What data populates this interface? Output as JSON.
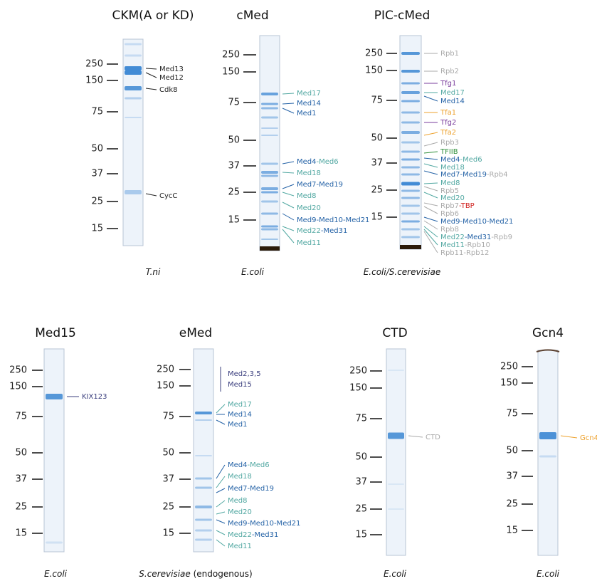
{
  "panels": [
    {
      "title": "CKM(A or KD)",
      "markers": [
        250,
        150,
        75,
        50,
        37,
        25,
        15
      ],
      "labels": [
        [
          {
            "text": "Med13",
            "color": "#222222"
          }
        ],
        [
          {
            "text": "Med12",
            "color": "#222222"
          }
        ],
        [
          {
            "text": "Cdk8",
            "color": "#222222"
          }
        ],
        [
          {
            "text": "CycC",
            "color": "#222222"
          }
        ]
      ],
      "caption": [
        {
          "text": "T.ni",
          "italic": true
        }
      ]
    },
    {
      "title": "cMed",
      "markers": [
        250,
        150,
        75,
        50,
        37,
        25,
        15
      ],
      "labels": [
        [
          {
            "text": "Med17",
            "color": "#52a8a2"
          }
        ],
        [
          {
            "text": "Med14",
            "color": "#2462a6"
          }
        ],
        [
          {
            "text": "Med1",
            "color": "#2462a6"
          }
        ],
        [
          {
            "text": "Med4",
            "color": "#2462a6"
          },
          {
            "text": "-Med6",
            "color": "#52a8a2"
          }
        ],
        [
          {
            "text": "Med18",
            "color": "#52a8a2"
          }
        ],
        [
          {
            "text": "Med7-Med19",
            "color": "#2462a6"
          }
        ],
        [
          {
            "text": "Med8",
            "color": "#52a8a2"
          }
        ],
        [
          {
            "text": "Med20",
            "color": "#52a8a2"
          }
        ],
        [
          {
            "text": "Med9-Med10-Med21",
            "color": "#2462a6"
          }
        ],
        [
          {
            "text": "Med22",
            "color": "#52a8a2"
          },
          {
            "text": "-Med31",
            "color": "#2462a6"
          }
        ],
        [
          {
            "text": "Med11",
            "color": "#52a8a2"
          }
        ]
      ],
      "caption": [
        {
          "text": "E.coli",
          "italic": true
        }
      ]
    },
    {
      "title": "PIC-cMed",
      "markers": [
        250,
        150,
        75,
        50,
        37,
        25,
        15
      ],
      "labels": [
        [
          {
            "text": "Rpb1",
            "color": "#aaaaaa"
          }
        ],
        [
          {
            "text": "Rpb2",
            "color": "#aaaaaa"
          }
        ],
        [
          {
            "text": "Tfg1",
            "color": "#7a3d9c"
          }
        ],
        [
          {
            "text": "Med17",
            "color": "#52a8a2"
          }
        ],
        [
          {
            "text": "Med14",
            "color": "#2462a6"
          }
        ],
        [
          {
            "text": "Tfa1",
            "color": "#eda22e"
          }
        ],
        [
          {
            "text": "Tfg2",
            "color": "#7a3d9c"
          }
        ],
        [
          {
            "text": "Tfa2",
            "color": "#eda22e"
          }
        ],
        [
          {
            "text": "Rpb3",
            "color": "#aaaaaa"
          }
        ],
        [
          {
            "text": "TFIIB",
            "color": "#2f8f3a"
          }
        ],
        [
          {
            "text": "Med4",
            "color": "#2462a6"
          },
          {
            "text": "-Med6",
            "color": "#52a8a2"
          }
        ],
        [
          {
            "text": "Med18",
            "color": "#52a8a2"
          }
        ],
        [
          {
            "text": "Med7-Med19",
            "color": "#2462a6"
          },
          {
            "text": "-Rpb4",
            "color": "#aaaaaa"
          }
        ],
        [
          {
            "text": "Med8",
            "color": "#52a8a2"
          }
        ],
        [
          {
            "text": "Rpb5",
            "color": "#aaaaaa"
          }
        ],
        [
          {
            "text": "Med20",
            "color": "#52a8a2"
          }
        ],
        [
          {
            "text": "Rpb7",
            "color": "#aaaaaa"
          },
          {
            "text": "-TBP",
            "color": "#d0201e"
          }
        ],
        [
          {
            "text": "Rpb6",
            "color": "#aaaaaa"
          }
        ],
        [
          {
            "text": "Med9-Med10-Med21",
            "color": "#2462a6"
          }
        ],
        [
          {
            "text": "Rpb8",
            "color": "#aaaaaa"
          }
        ],
        [
          {
            "text": "Med22",
            "color": "#52a8a2"
          },
          {
            "text": "-Med31",
            "color": "#2462a6"
          },
          {
            "text": "-Rpb9",
            "color": "#aaaaaa"
          }
        ],
        [
          {
            "text": "Med11",
            "color": "#52a8a2"
          },
          {
            "text": "-Rpb10",
            "color": "#aaaaaa"
          }
        ],
        [
          {
            "text": "Rpb11-Rpb12",
            "color": "#aaaaaa"
          }
        ]
      ],
      "caption": [
        {
          "text": "E.coli/S.cerevisiae",
          "italic": true
        }
      ]
    },
    {
      "title": "Med15",
      "markers": [
        250,
        150,
        75,
        50,
        37,
        25,
        15
      ],
      "labels": [
        [
          {
            "text": "KIX123",
            "color": "#3b3f7e"
          }
        ]
      ],
      "caption": [
        {
          "text": "E.coli",
          "italic": true
        }
      ]
    },
    {
      "title": "eMed",
      "markers": [
        250,
        150,
        75,
        50,
        37,
        25,
        15
      ],
      "labels": [
        [
          {
            "text": "Med2,3,5",
            "color": "#3b3f7e"
          }
        ],
        [
          {
            "text": "Med15",
            "color": "#3b3f7e"
          }
        ],
        [
          {
            "text": "Med17",
            "color": "#52a8a2"
          }
        ],
        [
          {
            "text": "Med14",
            "color": "#2462a6"
          }
        ],
        [
          {
            "text": "Med1",
            "color": "#2462a6"
          }
        ],
        [
          {
            "text": "Med4",
            "color": "#2462a6"
          },
          {
            "text": "-Med6",
            "color": "#52a8a2"
          }
        ],
        [
          {
            "text": "Med18",
            "color": "#52a8a2"
          }
        ],
        [
          {
            "text": "Med7-Med19",
            "color": "#2462a6"
          }
        ],
        [
          {
            "text": "Med8",
            "color": "#52a8a2"
          }
        ],
        [
          {
            "text": "Med20",
            "color": "#52a8a2"
          }
        ],
        [
          {
            "text": "Med9-Med10-Med21",
            "color": "#2462a6"
          }
        ],
        [
          {
            "text": "Med22",
            "color": "#52a8a2"
          },
          {
            "text": "-Med31",
            "color": "#2462a6"
          }
        ],
        [
          {
            "text": "Med11",
            "color": "#52a8a2"
          }
        ]
      ],
      "caption": [
        {
          "text": "S.cerevisiae",
          "italic": true
        },
        {
          "text": " (endogenous)",
          "italic": false
        }
      ]
    },
    {
      "title": "CTD",
      "markers": [
        250,
        150,
        75,
        50,
        37,
        25,
        15
      ],
      "labels": [
        [
          {
            "text": "CTD",
            "color": "#aaaaaa"
          }
        ]
      ],
      "caption": [
        {
          "text": "E.coli",
          "italic": true
        }
      ]
    },
    {
      "title": "Gcn4",
      "markers": [
        250,
        150,
        75,
        50,
        37,
        25,
        15
      ],
      "labels": [
        [
          {
            "text": "Gcn4",
            "color": "#eda22e"
          }
        ]
      ],
      "caption": [
        {
          "text": "E.coli",
          "italic": true
        }
      ]
    }
  ]
}
